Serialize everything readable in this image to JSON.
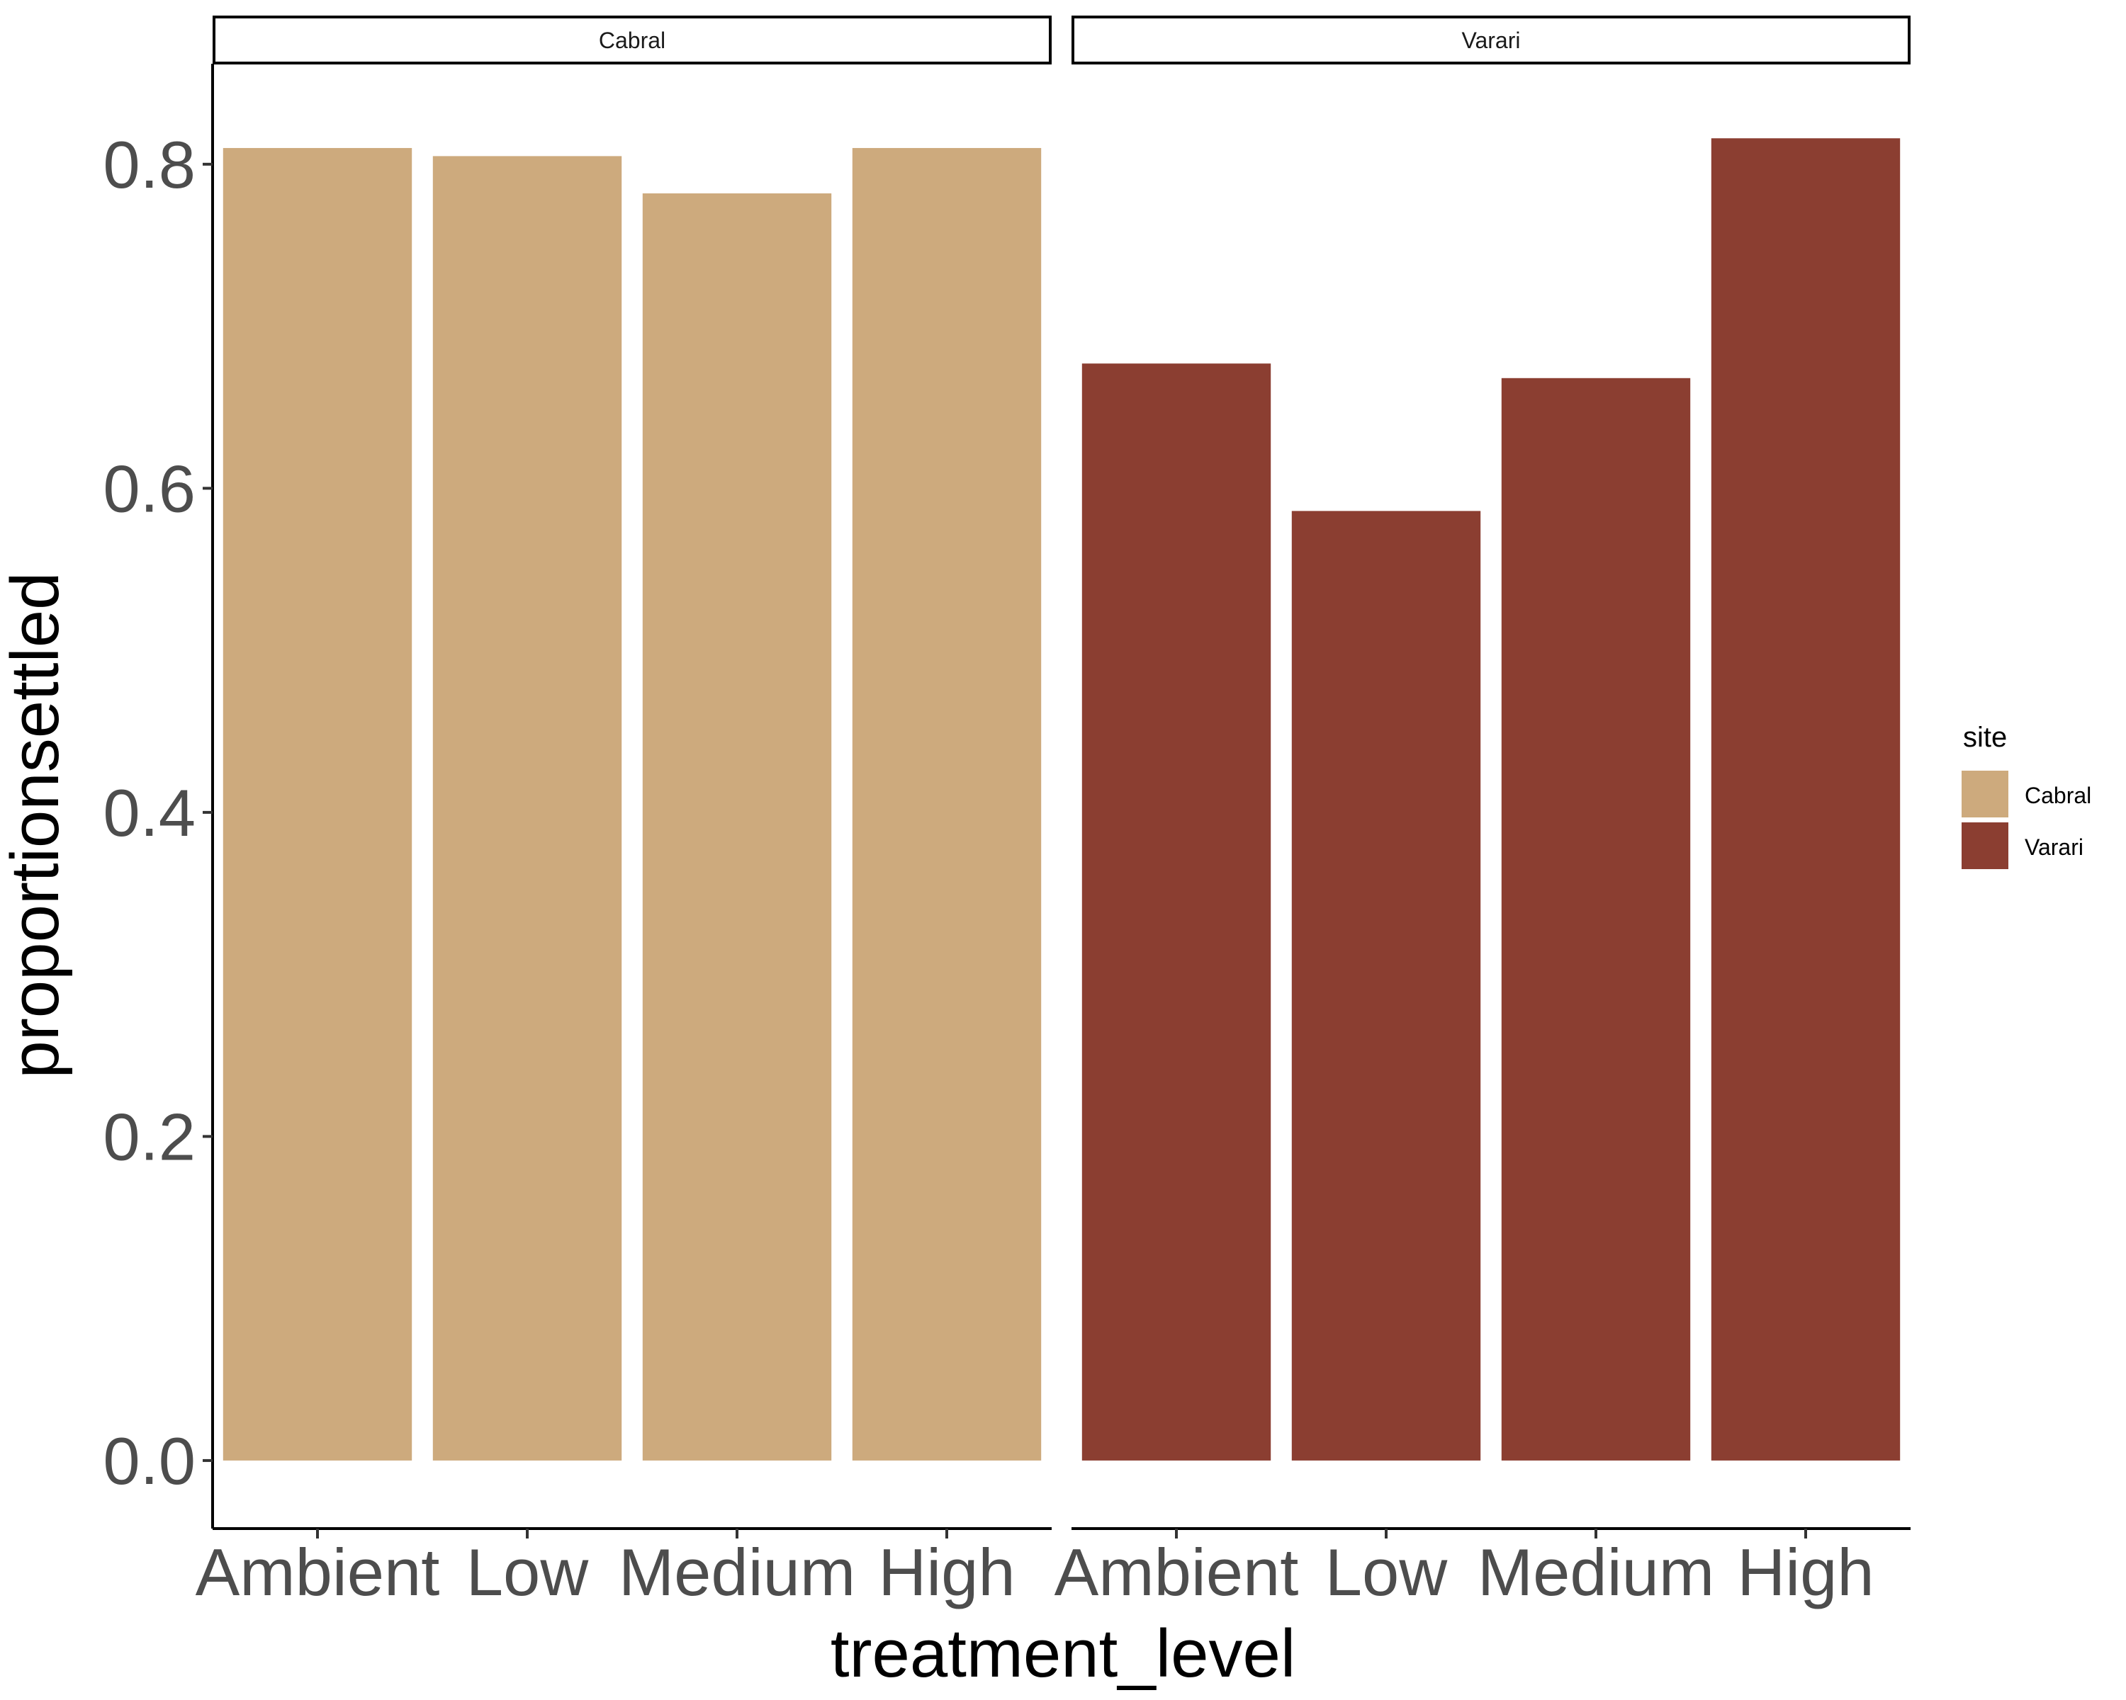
{
  "chart_data": {
    "type": "bar",
    "facet_by": "site",
    "facets": [
      "Cabral",
      "Varari"
    ],
    "categories": [
      "Ambient",
      "Low",
      "Medium",
      "High"
    ],
    "series": [
      {
        "name": "Cabral",
        "color": "#CDAA7D",
        "values": [
          0.81,
          0.805,
          0.782,
          0.81
        ]
      },
      {
        "name": "Varari",
        "color": "#8B3E31",
        "values": [
          0.677,
          0.586,
          0.668,
          0.816
        ]
      }
    ],
    "xlabel": "treatment_level",
    "ylabel": "proportionsettled",
    "ylim": [
      -0.042,
      0.862
    ],
    "yticks": [
      0.0,
      0.2,
      0.4,
      0.6,
      0.8
    ],
    "ytick_labels": [
      "0.0",
      "0.2",
      "0.4",
      "0.6",
      "0.8"
    ],
    "grid": false,
    "legend": {
      "title": "site",
      "placement": "right",
      "entries": [
        "Cabral",
        "Varari"
      ]
    }
  }
}
